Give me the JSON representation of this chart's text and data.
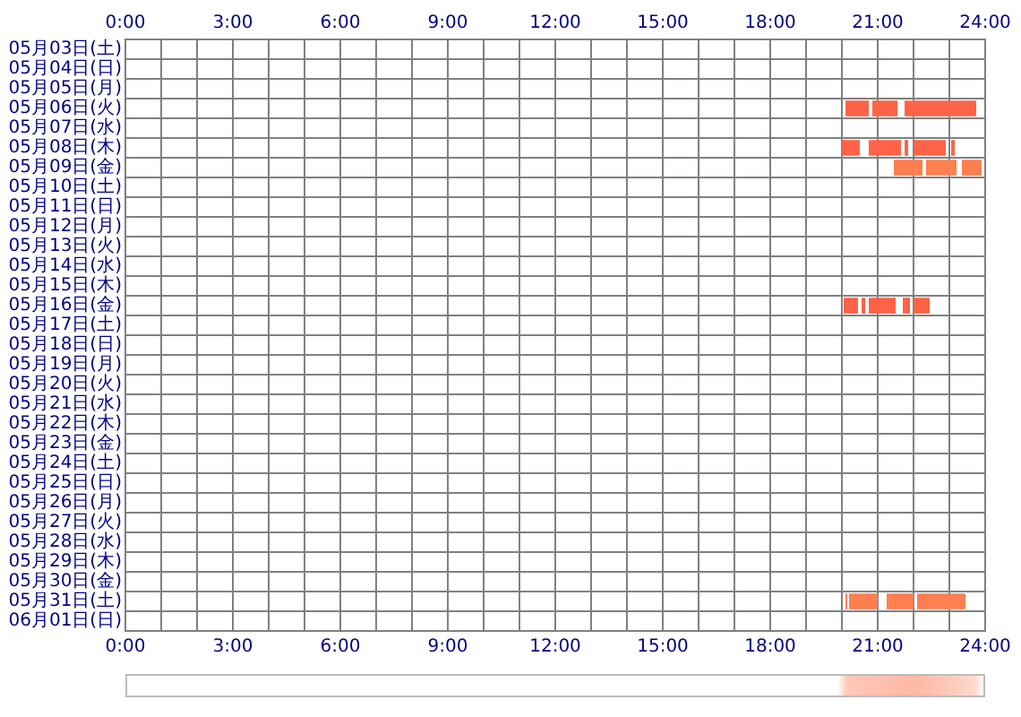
{
  "chart_data": {
    "type": "bar",
    "orientation": "horizontal",
    "grid": true,
    "categories": [
      "05月03日(土)",
      "05月04日(日)",
      "05月05日(月)",
      "05月06日(火)",
      "05月07日(水)",
      "05月08日(木)",
      "05月09日(金)",
      "05月10日(土)",
      "05月11日(日)",
      "05月12日(月)",
      "05月13日(火)",
      "05月14日(水)",
      "05月15日(木)",
      "05月16日(金)",
      "05月17日(土)",
      "05月18日(日)",
      "05月19日(月)",
      "05月20日(火)",
      "05月21日(水)",
      "05月22日(木)",
      "05月23日(金)",
      "05月24日(土)",
      "05月25日(日)",
      "05月26日(月)",
      "05月27日(火)",
      "05月28日(水)",
      "05月29日(木)",
      "05月30日(金)",
      "05月31日(土)",
      "06月01日(日)"
    ],
    "xlim": [
      0,
      24
    ],
    "xticks": [
      {
        "value": 0,
        "label": "0:00"
      },
      {
        "value": 1,
        "label": null
      },
      {
        "value": 2,
        "label": null
      },
      {
        "value": 3,
        "label": "3:00"
      },
      {
        "value": 4,
        "label": null
      },
      {
        "value": 5,
        "label": null
      },
      {
        "value": 6,
        "label": "6:00"
      },
      {
        "value": 7,
        "label": null
      },
      {
        "value": 8,
        "label": null
      },
      {
        "value": 9,
        "label": "9:00"
      },
      {
        "value": 10,
        "label": null
      },
      {
        "value": 11,
        "label": null
      },
      {
        "value": 12,
        "label": "12:00"
      },
      {
        "value": 13,
        "label": null
      },
      {
        "value": 14,
        "label": null
      },
      {
        "value": 15,
        "label": "15:00"
      },
      {
        "value": 16,
        "label": null
      },
      {
        "value": 17,
        "label": null
      },
      {
        "value": 18,
        "label": "18:00"
      },
      {
        "value": 19,
        "label": null
      },
      {
        "value": 20,
        "label": null
      },
      {
        "value": 21,
        "label": "21:00"
      },
      {
        "value": 22,
        "label": null
      },
      {
        "value": 23,
        "label": null
      },
      {
        "value": 24,
        "label": "24:00"
      }
    ],
    "x2lim": [
      0,
      24
    ],
    "x2ticks": [
      {
        "value": 0,
        "label": "0:00"
      },
      {
        "value": 1,
        "label": null
      },
      {
        "value": 2,
        "label": null
      },
      {
        "value": 3,
        "label": "3:00"
      },
      {
        "value": 4,
        "label": null
      },
      {
        "value": 5,
        "label": null
      },
      {
        "value": 6,
        "label": "6:00"
      },
      {
        "value": 7,
        "label": null
      },
      {
        "value": 8,
        "label": null
      },
      {
        "value": 9,
        "label": "9:00"
      },
      {
        "value": 10,
        "label": null
      },
      {
        "value": 11,
        "label": null
      },
      {
        "value": 12,
        "label": "12:00"
      },
      {
        "value": 13,
        "label": null
      },
      {
        "value": 14,
        "label": null
      },
      {
        "value": 15,
        "label": "15:00"
      },
      {
        "value": 16,
        "label": null
      },
      {
        "value": 17,
        "label": null
      },
      {
        "value": 18,
        "label": "18:00"
      },
      {
        "value": 19,
        "label": null
      },
      {
        "value": 20,
        "label": null
      },
      {
        "value": 21,
        "label": "21:00"
      },
      {
        "value": 22,
        "label": null
      },
      {
        "value": 23,
        "label": null
      },
      {
        "value": 24,
        "label": "24:00"
      }
    ],
    "series": [
      {
        "base": [
          null,
          null,
          null,
          20.1,
          null,
          20.0,
          21.45,
          null,
          null,
          null,
          null,
          null,
          null,
          20.05,
          null,
          null,
          null,
          null,
          null,
          null,
          null,
          null,
          null,
          null,
          null,
          null,
          null,
          null,
          20.1,
          null
        ],
        "values": [
          null,
          null,
          null,
          0.65,
          null,
          0.5,
          0.8,
          null,
          null,
          null,
          null,
          null,
          null,
          0.4,
          null,
          null,
          null,
          null,
          null,
          null,
          null,
          null,
          null,
          null,
          null,
          null,
          null,
          null,
          0.05,
          null
        ],
        "colors": [
          null,
          null,
          null,
          "#ff6347",
          null,
          "#ff6347",
          "#ff7f50",
          null,
          null,
          null,
          null,
          null,
          null,
          "#ff6347",
          null,
          null,
          null,
          null,
          null,
          null,
          null,
          null,
          null,
          null,
          null,
          null,
          null,
          null,
          "#ff7f50",
          null
        ]
      },
      {
        "base": [
          null,
          null,
          null,
          20.85,
          null,
          20.75,
          22.35,
          null,
          null,
          null,
          null,
          null,
          null,
          20.55,
          null,
          null,
          null,
          null,
          null,
          null,
          null,
          null,
          null,
          null,
          null,
          null,
          null,
          null,
          20.2,
          null
        ],
        "values": [
          null,
          null,
          null,
          0.7,
          null,
          0.9,
          0.85,
          null,
          null,
          null,
          null,
          null,
          null,
          0.1,
          null,
          null,
          null,
          null,
          null,
          null,
          null,
          null,
          null,
          null,
          null,
          null,
          null,
          null,
          0.8,
          null
        ],
        "colors": [
          null,
          null,
          null,
          "#ff6347",
          null,
          "#ff6347",
          "#ff7f50",
          null,
          null,
          null,
          null,
          null,
          null,
          "#ff6347",
          null,
          null,
          null,
          null,
          null,
          null,
          null,
          null,
          null,
          null,
          null,
          null,
          null,
          null,
          "#ff7f50",
          null
        ]
      },
      {
        "base": [
          null,
          null,
          null,
          21.75,
          null,
          21.75,
          23.35,
          null,
          null,
          null,
          null,
          null,
          null,
          20.75,
          null,
          null,
          null,
          null,
          null,
          null,
          null,
          null,
          null,
          null,
          null,
          null,
          null,
          null,
          21.25,
          null
        ],
        "values": [
          null,
          null,
          null,
          2.0,
          null,
          0.1,
          0.55,
          null,
          null,
          null,
          null,
          null,
          null,
          0.75,
          null,
          null,
          null,
          null,
          null,
          null,
          null,
          null,
          null,
          null,
          null,
          null,
          null,
          null,
          0.75,
          null
        ],
        "colors": [
          null,
          null,
          null,
          "#ff6347",
          null,
          "#ff6347",
          "#ff7f50",
          null,
          null,
          null,
          null,
          null,
          null,
          "#ff6347",
          null,
          null,
          null,
          null,
          null,
          null,
          null,
          null,
          null,
          null,
          null,
          null,
          null,
          null,
          "#ff7f50",
          null
        ]
      },
      {
        "base": [
          null,
          null,
          null,
          null,
          null,
          22.0,
          null,
          null,
          null,
          null,
          null,
          null,
          null,
          21.7,
          null,
          null,
          null,
          null,
          null,
          null,
          null,
          null,
          null,
          null,
          null,
          null,
          null,
          null,
          22.1,
          null
        ],
        "values": [
          null,
          null,
          null,
          null,
          null,
          0.9,
          null,
          null,
          null,
          null,
          null,
          null,
          null,
          0.2,
          null,
          null,
          null,
          null,
          null,
          null,
          null,
          null,
          null,
          null,
          null,
          null,
          null,
          null,
          1.35,
          null
        ],
        "colors": [
          null,
          null,
          null,
          null,
          null,
          "#ff6347",
          null,
          null,
          null,
          null,
          null,
          null,
          null,
          "#ff6347",
          null,
          null,
          null,
          null,
          null,
          null,
          null,
          null,
          null,
          null,
          null,
          null,
          null,
          null,
          "#ff7f50",
          null
        ]
      },
      {
        "base": [
          null,
          null,
          null,
          null,
          null,
          23.05,
          null,
          null,
          null,
          null,
          null,
          null,
          null,
          22.0,
          null,
          null,
          null,
          null,
          null,
          null,
          null,
          null,
          null,
          null,
          null,
          null,
          null,
          null,
          null,
          null
        ],
        "values": [
          null,
          null,
          null,
          null,
          null,
          0.1,
          null,
          null,
          null,
          null,
          null,
          null,
          null,
          0.45,
          null,
          null,
          null,
          null,
          null,
          null,
          null,
          null,
          null,
          null,
          null,
          null,
          null,
          null,
          null,
          null
        ],
        "colors": [
          null,
          null,
          null,
          null,
          null,
          "#ff6347",
          null,
          null,
          null,
          null,
          null,
          null,
          null,
          "#ff6347",
          null,
          null,
          null,
          null,
          null,
          null,
          null,
          null,
          null,
          null,
          null,
          null,
          null,
          null,
          null,
          null
        ]
      }
    ]
  }
}
